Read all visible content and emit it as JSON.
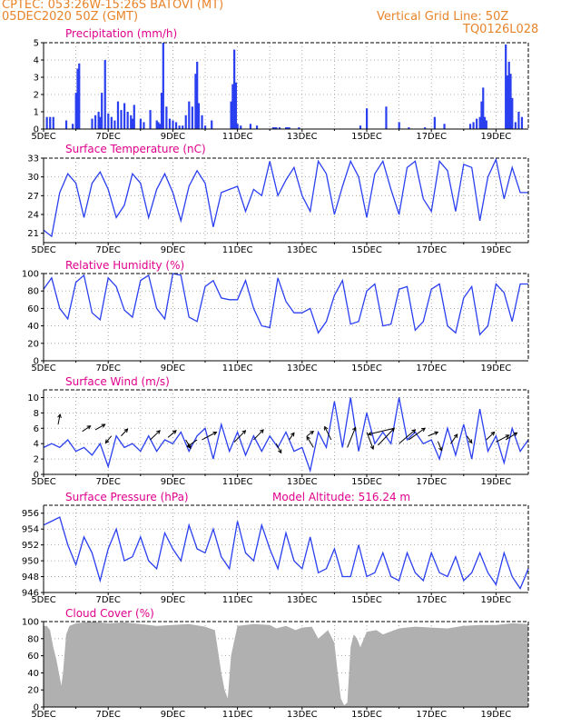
{
  "header": {
    "line1_left": "CPTEC:   053:26W-15:26S   BATOVI (MT)",
    "line2_left": "05DEC2020 50Z (GMT)",
    "line2_right": "Vertical Grid Line: 50Z",
    "line3_right": "TQ0126L028"
  },
  "colors": {
    "series": "#2a3ff0",
    "title": "#e0008c",
    "header": "#e8842a",
    "cloud": "#b0b0b0",
    "grid": "#999999"
  },
  "x_labels": [
    "5DEC",
    "7DEC",
    "9DEC",
    "11DEC",
    "13DEC",
    "15DEC",
    "17DEC",
    "19DEC"
  ],
  "chart_data": [
    {
      "type": "bar",
      "title": "Precipitation (mm/h)",
      "ylim": [
        0,
        5
      ],
      "yticks": [
        "0",
        "1",
        "2",
        "3",
        "4",
        "5"
      ],
      "ytick_values": [
        0,
        1,
        2,
        3,
        4,
        5
      ],
      "x_range_days": [
        0,
        15
      ],
      "x_ticks": [
        "5DEC",
        "7DEC",
        "9DEC",
        "11DEC",
        "13DEC",
        "15DEC",
        "17DEC",
        "19DEC"
      ],
      "x": [
        0.1,
        0.2,
        0.3,
        0.7,
        0.9,
        1.0,
        1.05,
        1.1,
        1.5,
        1.6,
        1.7,
        1.75,
        1.8,
        1.9,
        2.0,
        2.1,
        2.2,
        2.3,
        2.4,
        2.5,
        2.6,
        2.7,
        2.75,
        2.8,
        3.0,
        3.1,
        3.3,
        3.5,
        3.55,
        3.6,
        3.65,
        3.7,
        3.8,
        3.9,
        4.0,
        4.1,
        4.2,
        4.3,
        4.4,
        4.5,
        4.6,
        4.7,
        4.75,
        4.8,
        4.9,
        5.0,
        5.2,
        5.8,
        5.85,
        5.9,
        5.95,
        6.0,
        6.1,
        6.4,
        6.6,
        7.1,
        7.15,
        7.2,
        7.3,
        7.5,
        7.55,
        7.6,
        7.9,
        9.8,
        10.0,
        10.6,
        11.0,
        11.3,
        11.8,
        12.1,
        12.4,
        13.2,
        13.3,
        13.4,
        13.5,
        13.55,
        13.6,
        13.65,
        13.7,
        14.3,
        14.35,
        14.4,
        14.45,
        14.5,
        14.6,
        14.7,
        14.8
      ],
      "values": [
        0.7,
        0.7,
        0.7,
        0.5,
        0.3,
        2.1,
        3.5,
        3.8,
        0.6,
        0.8,
        1.0,
        0.7,
        2.1,
        4.0,
        0.9,
        0.7,
        0.5,
        1.6,
        1.1,
        1.5,
        1.0,
        0.8,
        0.6,
        1.4,
        0.6,
        0.4,
        1.1,
        0.5,
        0.4,
        0.3,
        2.1,
        5.0,
        1.3,
        0.6,
        0.5,
        0.4,
        0.2,
        0.2,
        0.8,
        1.6,
        1.3,
        3.2,
        3.9,
        1.5,
        0.8,
        0.2,
        0.5,
        1.6,
        2.6,
        4.6,
        2.7,
        0.3,
        0.2,
        0.3,
        0.2,
        0.1,
        0.1,
        0.1,
        0.1,
        0.1,
        0.1,
        0.1,
        0.1,
        0.2,
        1.2,
        1.3,
        0.4,
        0.1,
        0.1,
        0.7,
        0.3,
        0.3,
        0.4,
        0.6,
        0.7,
        1.6,
        2.4,
        0.7,
        0.5,
        4.9,
        3.1,
        3.9,
        3.2,
        1.8,
        0.4,
        1.0,
        0.7
      ]
    },
    {
      "type": "line",
      "title": "Surface Temperature (nC)",
      "ylim": [
        19.5,
        33
      ],
      "yticks": [
        "21",
        "24",
        "27",
        "30",
        "33"
      ],
      "ytick_values": [
        21,
        24,
        27,
        30,
        33
      ],
      "x_range_days": [
        0,
        15
      ],
      "x_ticks": [
        "5DEC",
        "7DEC",
        "9DEC",
        "11DEC",
        "13DEC",
        "15DEC",
        "17DEC",
        "19DEC"
      ],
      "x": [
        0,
        0.25,
        0.5,
        0.75,
        1.0,
        1.25,
        1.5,
        1.75,
        2.0,
        2.25,
        2.5,
        2.75,
        3.0,
        3.25,
        3.5,
        3.75,
        4.0,
        4.25,
        4.5,
        4.75,
        5.0,
        5.25,
        5.5,
        5.75,
        6.0,
        6.25,
        6.5,
        6.75,
        7.0,
        7.25,
        7.5,
        7.75,
        8.0,
        8.25,
        8.5,
        8.75,
        9.0,
        9.25,
        9.5,
        9.75,
        10.0,
        10.25,
        10.5,
        10.75,
        11.0,
        11.25,
        11.5,
        11.75,
        12.0,
        12.25,
        12.5,
        12.75,
        13.0,
        13.25,
        13.5,
        13.75,
        14.0,
        14.25,
        14.5,
        14.75,
        15.0
      ],
      "values": [
        21.5,
        20.5,
        27.5,
        30.5,
        29.0,
        23.5,
        29.0,
        30.8,
        28.0,
        23.5,
        25.5,
        30.5,
        29.0,
        23.5,
        28.0,
        30.5,
        27.5,
        23.0,
        28.5,
        31.0,
        29.0,
        22.0,
        27.5,
        28.0,
        28.5,
        24.5,
        28.0,
        27.0,
        32.5,
        27.0,
        29.5,
        31.5,
        27.0,
        24.5,
        32.5,
        30.5,
        24.0,
        28.5,
        32.5,
        30.0,
        23.5,
        30.5,
        32.5,
        28.0,
        24.0,
        31.5,
        32.5,
        26.5,
        24.5,
        32.5,
        31.0,
        24.5,
        32.0,
        31.5,
        23.0,
        30.0,
        32.8,
        26.5,
        31.5,
        27.5,
        27.5
      ]
    },
    {
      "type": "line",
      "title": "Relative Humidity (%)",
      "ylim": [
        0,
        100
      ],
      "yticks": [
        "0",
        "20",
        "40",
        "60",
        "80",
        "100"
      ],
      "ytick_values": [
        0,
        20,
        40,
        60,
        80,
        100
      ],
      "x_range_days": [
        0,
        15
      ],
      "x_ticks": [
        "5DEC",
        "7DEC",
        "9DEC",
        "11DEC",
        "13DEC",
        "15DEC",
        "17DEC",
        "19DEC"
      ],
      "x": [
        0,
        0.25,
        0.5,
        0.75,
        1.0,
        1.25,
        1.5,
        1.75,
        2.0,
        2.25,
        2.5,
        2.75,
        3.0,
        3.25,
        3.5,
        3.75,
        4.0,
        4.25,
        4.5,
        4.75,
        5.0,
        5.25,
        5.5,
        5.75,
        6.0,
        6.25,
        6.5,
        6.75,
        7.0,
        7.25,
        7.5,
        7.75,
        8.0,
        8.25,
        8.5,
        8.75,
        9.0,
        9.25,
        9.5,
        9.75,
        10.0,
        10.25,
        10.5,
        10.75,
        11.0,
        11.25,
        11.5,
        11.75,
        12.0,
        12.25,
        12.5,
        12.75,
        13.0,
        13.25,
        13.5,
        13.75,
        14.0,
        14.25,
        14.5,
        14.75,
        15.0
      ],
      "values": [
        82,
        95,
        60,
        48,
        90,
        98,
        55,
        47,
        95,
        85,
        58,
        50,
        92,
        98,
        60,
        48,
        100,
        98,
        50,
        45,
        85,
        92,
        72,
        70,
        70,
        92,
        60,
        40,
        38,
        95,
        68,
        55,
        55,
        60,
        32,
        45,
        75,
        92,
        42,
        45,
        80,
        88,
        40,
        42,
        82,
        85,
        35,
        45,
        82,
        88,
        40,
        32,
        72,
        85,
        30,
        40,
        88,
        78,
        45,
        88,
        88
      ]
    },
    {
      "type": "line",
      "title": "Surface Wind (m/s)",
      "ylim": [
        0,
        11
      ],
      "yticks": [
        "0",
        "2",
        "4",
        "6",
        "8",
        "10"
      ],
      "ytick_values": [
        0,
        2,
        4,
        6,
        8,
        10
      ],
      "x_range_days": [
        0,
        15
      ],
      "x_ticks": [
        "5DEC",
        "7DEC",
        "9DEC",
        "11DEC",
        "13DEC",
        "15DEC",
        "17DEC",
        "19DEC"
      ],
      "x": [
        0,
        0.25,
        0.5,
        0.75,
        1.0,
        1.25,
        1.5,
        1.75,
        2.0,
        2.25,
        2.5,
        2.75,
        3.0,
        3.25,
        3.5,
        3.75,
        4.0,
        4.25,
        4.5,
        4.75,
        5.0,
        5.25,
        5.5,
        5.75,
        6.0,
        6.25,
        6.5,
        6.75,
        7.0,
        7.25,
        7.5,
        7.75,
        8.0,
        8.25,
        8.5,
        8.75,
        9.0,
        9.25,
        9.5,
        9.75,
        10.0,
        10.25,
        10.5,
        10.75,
        11.0,
        11.25,
        11.5,
        11.75,
        12.0,
        12.25,
        12.5,
        12.75,
        13.0,
        13.25,
        13.5,
        13.75,
        14.0,
        14.25,
        14.5,
        14.75,
        15.0
      ],
      "values": [
        3.5,
        4.0,
        3.5,
        4.5,
        3.0,
        3.5,
        2.5,
        4.0,
        1.0,
        5.0,
        3.5,
        4.0,
        3.0,
        5.0,
        3.0,
        4.5,
        4.0,
        5.5,
        3.0,
        5.0,
        6.0,
        2.0,
        6.5,
        3.0,
        5.5,
        2.5,
        5.0,
        3.0,
        5.0,
        3.5,
        5.5,
        3.0,
        3.5,
        0.5,
        5.5,
        3.5,
        9.5,
        3.5,
        10.0,
        3.0,
        8.0,
        4.0,
        5.5,
        4.0,
        10.0,
        4.5,
        5.5,
        4.0,
        4.5,
        2.0,
        6.0,
        2.5,
        6.5,
        2.0,
        8.5,
        3.0,
        5.0,
        1.5,
        6.0,
        3.0,
        4.5
      ],
      "arrows": [
        {
          "x": 0.45,
          "y": 6.5,
          "dx": 0.06,
          "dy": 1.3
        },
        {
          "x": 1.2,
          "y": 5.6,
          "dx": 0.25,
          "dy": 0.7
        },
        {
          "x": 1.6,
          "y": 5.8,
          "dx": 0.3,
          "dy": 0.7
        },
        {
          "x": 2.1,
          "y": 5.0,
          "dx": -0.18,
          "dy": -0.9
        },
        {
          "x": 2.4,
          "y": 5.0,
          "dx": 0.2,
          "dy": 0.9
        },
        {
          "x": 3.3,
          "y": 4.5,
          "dx": 0.3,
          "dy": 1.2
        },
        {
          "x": 3.85,
          "y": 4.8,
          "dx": 0.25,
          "dy": 0.9
        },
        {
          "x": 4.4,
          "y": 4.5,
          "dx": 0.15,
          "dy": -1.1
        },
        {
          "x": 4.75,
          "y": 4.5,
          "dx": -0.3,
          "dy": -0.9
        },
        {
          "x": 4.9,
          "y": 4.5,
          "dx": 0.45,
          "dy": 1.0
        },
        {
          "x": 5.9,
          "y": 4.2,
          "dx": 0.35,
          "dy": 1.5
        },
        {
          "x": 6.5,
          "y": 4.5,
          "dx": 0.3,
          "dy": 1.3
        },
        {
          "x": 7.2,
          "y": 4.0,
          "dx": 0.15,
          "dy": -1.2
        },
        {
          "x": 7.6,
          "y": 4.5,
          "dx": 0.15,
          "dy": 0.9
        },
        {
          "x": 8.15,
          "y": 5.0,
          "dx": 0.2,
          "dy": 0.6
        },
        {
          "x": 8.35,
          "y": 3.5,
          "dx": -0.2,
          "dy": 1.4
        },
        {
          "x": 8.9,
          "y": 4.5,
          "dx": -0.2,
          "dy": 1.7
        },
        {
          "x": 9.4,
          "y": 3.5,
          "dx": 0.25,
          "dy": 2.6
        },
        {
          "x": 10.0,
          "y": 5.5,
          "dx": 0.2,
          "dy": -2.2
        },
        {
          "x": 10.35,
          "y": 3.8,
          "dx": 0.5,
          "dy": 2.2
        },
        {
          "x": 10.85,
          "y": 6.0,
          "dx": -0.8,
          "dy": -0.8
        },
        {
          "x": 11.0,
          "y": 4.0,
          "dx": 0.5,
          "dy": 1.8
        },
        {
          "x": 11.3,
          "y": 4.5,
          "dx": 0.5,
          "dy": 1.5
        },
        {
          "x": 11.9,
          "y": 5.0,
          "dx": 0.3,
          "dy": 0.5
        },
        {
          "x": 12.2,
          "y": 4.3,
          "dx": 0.12,
          "dy": -1.2
        },
        {
          "x": 12.6,
          "y": 4.0,
          "dx": 0.2,
          "dy": 1.2
        },
        {
          "x": 13.1,
          "y": 5.0,
          "dx": 0.15,
          "dy": -0.9
        },
        {
          "x": 13.7,
          "y": 4.5,
          "dx": 0.25,
          "dy": 1.0
        },
        {
          "x": 14.0,
          "y": 4.2,
          "dx": 0.4,
          "dy": 0.9
        },
        {
          "x": 14.3,
          "y": 4.5,
          "dx": 0.35,
          "dy": 0.9
        }
      ]
    },
    {
      "type": "line",
      "title": "Surface Pressure (hPa)",
      "annotation": "Model Altitude: 516.24 m",
      "ylim": [
        946,
        957
      ],
      "yticks": [
        "946",
        "948",
        "950",
        "952",
        "954",
        "956"
      ],
      "ytick_values": [
        946,
        948,
        950,
        952,
        954,
        956
      ],
      "x_range_days": [
        0,
        15
      ],
      "x_ticks": [
        "5DEC",
        "7DEC",
        "9DEC",
        "11DEC",
        "13DEC",
        "15DEC",
        "17DEC",
        "19DEC"
      ],
      "x": [
        0,
        0.25,
        0.5,
        0.75,
        1.0,
        1.25,
        1.5,
        1.75,
        2.0,
        2.25,
        2.5,
        2.75,
        3.0,
        3.25,
        3.5,
        3.75,
        4.0,
        4.25,
        4.5,
        4.75,
        5.0,
        5.25,
        5.5,
        5.75,
        6.0,
        6.25,
        6.5,
        6.75,
        7.0,
        7.25,
        7.5,
        7.75,
        8.0,
        8.25,
        8.5,
        8.75,
        9.0,
        9.25,
        9.5,
        9.75,
        10.0,
        10.25,
        10.5,
        10.75,
        11.0,
        11.25,
        11.5,
        11.75,
        12.0,
        12.25,
        12.5,
        12.75,
        13.0,
        13.25,
        13.5,
        13.75,
        14.0,
        14.25,
        14.5,
        14.75,
        15.0
      ],
      "values": [
        954.5,
        955.0,
        955.5,
        952.0,
        949.5,
        953.0,
        951.0,
        947.5,
        951.5,
        954.0,
        950.0,
        950.5,
        953.0,
        950.0,
        949.0,
        953.5,
        951.5,
        950.0,
        954.5,
        951.5,
        951.0,
        954.0,
        950.5,
        949.0,
        955.0,
        951.0,
        950.0,
        954.5,
        951.5,
        949.0,
        953.5,
        950.0,
        949.0,
        953.0,
        948.5,
        949.0,
        951.5,
        948.0,
        948.0,
        952.0,
        948.0,
        948.5,
        951.0,
        948.0,
        947.5,
        951.0,
        948.5,
        947.5,
        951.0,
        948.5,
        948.0,
        950.5,
        947.5,
        948.5,
        951.0,
        948.5,
        947.0,
        951.0,
        948.0,
        946.5,
        949.0
      ]
    },
    {
      "type": "area",
      "title": "Cloud Cover (%)",
      "ylim": [
        0,
        100
      ],
      "yticks": [
        "0",
        "20",
        "40",
        "60",
        "80",
        "100"
      ],
      "ytick_values": [
        0,
        20,
        40,
        60,
        80,
        100
      ],
      "x_range_days": [
        0,
        15
      ],
      "x_ticks": [
        "5DEC",
        "7DEC",
        "9DEC",
        "11DEC",
        "13DEC",
        "15DEC",
        "17DEC",
        "19DEC"
      ],
      "x": [
        0,
        0.1,
        0.2,
        0.3,
        0.4,
        0.5,
        0.55,
        0.6,
        0.7,
        0.8,
        1.0,
        1.5,
        2.0,
        2.5,
        3.0,
        3.5,
        4.0,
        4.5,
        5.0,
        5.3,
        5.5,
        5.6,
        5.7,
        5.8,
        6.0,
        6.5,
        7.0,
        7.2,
        7.5,
        7.8,
        8.0,
        8.3,
        8.5,
        8.8,
        9.0,
        9.1,
        9.2,
        9.3,
        9.4,
        9.5,
        9.6,
        9.7,
        9.8,
        10.0,
        10.3,
        10.5,
        11.0,
        11.5,
        12.0,
        12.5,
        13.0,
        13.5,
        14.0,
        14.5,
        15.0
      ],
      "values": [
        95,
        95,
        90,
        70,
        55,
        35,
        25,
        40,
        85,
        95,
        98,
        100,
        98,
        99,
        97,
        95,
        96,
        97,
        94,
        90,
        40,
        20,
        10,
        60,
        95,
        97,
        96,
        92,
        95,
        90,
        93,
        94,
        80,
        90,
        75,
        40,
        10,
        2,
        5,
        70,
        85,
        80,
        70,
        88,
        90,
        85,
        92,
        94,
        93,
        92,
        95,
        96,
        96,
        98,
        97
      ]
    }
  ]
}
